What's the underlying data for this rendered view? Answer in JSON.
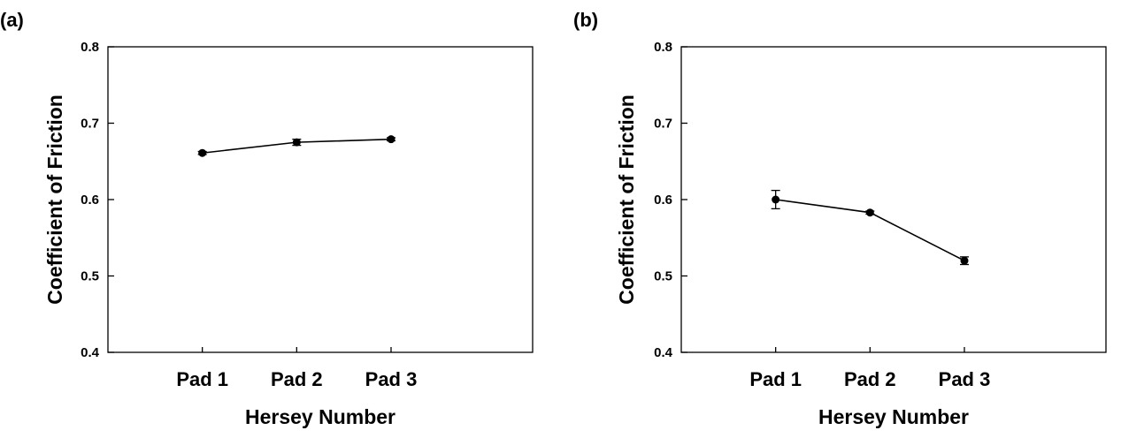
{
  "chart_data": [
    {
      "type": "line",
      "panel_label": "(a)",
      "categories": [
        "Pad 1",
        "Pad 2",
        "Pad 3"
      ],
      "series": [
        {
          "values": [
            0.661,
            0.675,
            0.679
          ],
          "errors": [
            0.002,
            0.004,
            0.002
          ]
        }
      ],
      "xlabel": "Hersey Number",
      "ylabel": "Coefficient of Friction",
      "ylim": [
        0.4,
        0.8
      ],
      "yticks": [
        "0.4",
        "0.5",
        "0.6",
        "0.7",
        "0.8"
      ],
      "grid": false,
      "legend": "none"
    },
    {
      "type": "line",
      "panel_label": "(b)",
      "categories": [
        "Pad 1",
        "Pad 2",
        "Pad 3"
      ],
      "series": [
        {
          "values": [
            0.6,
            0.583,
            0.52
          ],
          "errors": [
            0.012,
            0.002,
            0.005
          ]
        }
      ],
      "xlabel": "Hersey Number",
      "ylabel": "Coefficient of Friction",
      "ylim": [
        0.4,
        0.8
      ],
      "yticks": [
        "0.4",
        "0.5",
        "0.6",
        "0.7",
        "0.8"
      ],
      "grid": false,
      "legend": "none"
    }
  ]
}
